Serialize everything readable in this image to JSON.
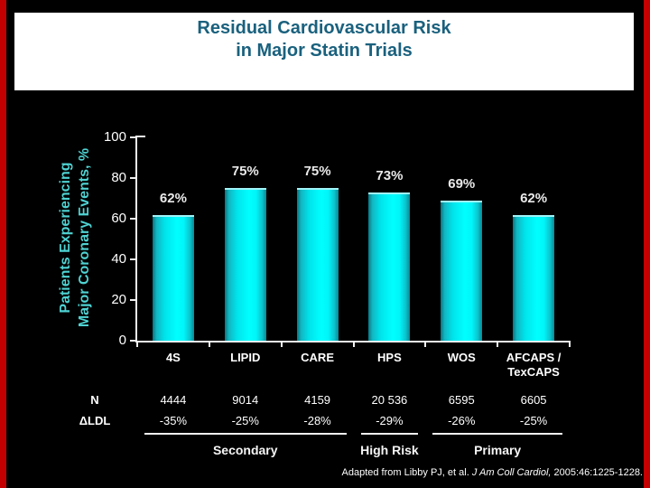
{
  "slide": {
    "title_line1": "Residual Cardiovascular Risk",
    "title_line2": "in Major Statin Trials",
    "footer_prefix": "Adapted from Libby PJ, et al. ",
    "footer_journal": "J Am Coll Cardiol,",
    "footer_suffix": " 2005:46:1225-1228."
  },
  "colors": {
    "background": "#000000",
    "edge_stripe_red": "#c40000",
    "title_box": "#ffffff",
    "title_text": "#1a617e",
    "bar_bright": "#00ffff",
    "bar_dark": "#067682",
    "axis": "#f0f0f0",
    "ylabel_text": "#4fd2d2",
    "text": "#ffffff"
  },
  "chart_data": {
    "type": "bar",
    "title": "Residual Cardiovascular Risk in Major Statin Trials",
    "ylabel": "Patients Experiencing Major Coronary Events, %",
    "ylabel_line1": "Patients Experiencing",
    "ylabel_line2": "Major Coronary Events, %",
    "ylim": [
      0,
      100
    ],
    "yticks": [
      100,
      80,
      60,
      40,
      20,
      0
    ],
    "grid": false,
    "legend": "none",
    "categories": [
      "4S",
      "LIPID",
      "CARE",
      "HPS",
      "WOS",
      "AFCAPS /\nTexCAPS"
    ],
    "values": [
      62,
      75,
      75,
      73,
      69,
      62
    ],
    "bar_labels": [
      "62%",
      "75%",
      "75%",
      "73%",
      "69%",
      "62%"
    ],
    "table": {
      "row_n_label": "N",
      "row_n": [
        "4444",
        "9014",
        "4159",
        "20 536",
        "6595",
        "6605"
      ],
      "row_ldl_label": "ΔLDL",
      "row_ldl": [
        "-35%",
        "-25%",
        "-28%",
        "-29%",
        "-26%",
        "-25%"
      ]
    },
    "groups": [
      {
        "label": "Secondary",
        "start": 0,
        "end": 2
      },
      {
        "label": "High Risk",
        "start": 3,
        "end": 3
      },
      {
        "label": "Primary",
        "start": 4,
        "end": 5
      }
    ],
    "source_note": "Adapted from Libby PJ, et al. J Am Coll Cardiol, 2005:46:1225-1228."
  }
}
